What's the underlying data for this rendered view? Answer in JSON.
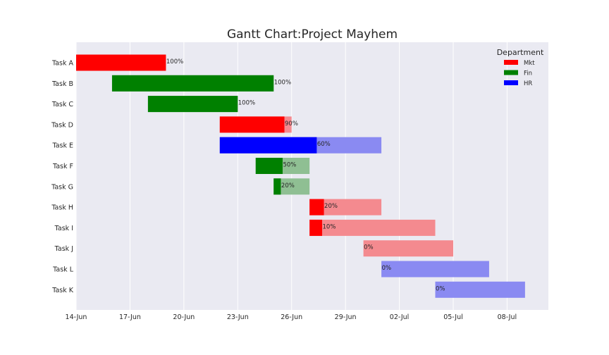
{
  "chart_data": {
    "type": "bar",
    "orientation": "horizontal-gantt",
    "title": "Gantt Chart:Project Mayhem",
    "xlabel": "",
    "ylabel": "",
    "grid": true,
    "legend_position": "top-right",
    "legend_title": "Department",
    "departments": [
      {
        "name": "Mkt",
        "color": "#ff0000",
        "light_color": "#f48a8f"
      },
      {
        "name": "Fin",
        "color": "#008000",
        "light_color": "#8fbf93"
      },
      {
        "name": "HR",
        "color": "#0000ff",
        "light_color": "#8a8af2"
      }
    ],
    "xlim_days": [
      0,
      26.3
    ],
    "x_tick_days": [
      0,
      3,
      6,
      9,
      12,
      15,
      18,
      21,
      24
    ],
    "x_tick_labels": [
      "14-Jun",
      "17-Jun",
      "20-Jun",
      "23-Jun",
      "26-Jun",
      "29-Jun",
      "02-Jul",
      "05-Jul",
      "08-Jul"
    ],
    "tasks": [
      {
        "task": "Task A",
        "department": "Mkt",
        "start": "14-Jun",
        "end": "19-Jun",
        "start_day": 0,
        "end_day": 5,
        "completion": 1.0,
        "completion_label": "100%"
      },
      {
        "task": "Task B",
        "department": "Fin",
        "start": "16-Jun",
        "end": "25-Jun",
        "start_day": 2,
        "end_day": 11,
        "completion": 1.0,
        "completion_label": "100%"
      },
      {
        "task": "Task C",
        "department": "Fin",
        "start": "18-Jun",
        "end": "23-Jun",
        "start_day": 4,
        "end_day": 9,
        "completion": 1.0,
        "completion_label": "100%"
      },
      {
        "task": "Task D",
        "department": "Mkt",
        "start": "22-Jun",
        "end": "26-Jun",
        "start_day": 8,
        "end_day": 12,
        "completion": 0.9,
        "completion_label": "90%"
      },
      {
        "task": "Task E",
        "department": "HR",
        "start": "22-Jun",
        "end": "01-Jul",
        "start_day": 8,
        "end_day": 17,
        "completion": 0.6,
        "completion_label": "60%"
      },
      {
        "task": "Task F",
        "department": "Fin",
        "start": "24-Jun",
        "end": "27-Jun",
        "start_day": 10,
        "end_day": 13,
        "completion": 0.5,
        "completion_label": "50%"
      },
      {
        "task": "Task G",
        "department": "Fin",
        "start": "25-Jun",
        "end": "27-Jun",
        "start_day": 11,
        "end_day": 13,
        "completion": 0.2,
        "completion_label": "20%"
      },
      {
        "task": "Task H",
        "department": "Mkt",
        "start": "27-Jun",
        "end": "01-Jul",
        "start_day": 13,
        "end_day": 17,
        "completion": 0.2,
        "completion_label": "20%"
      },
      {
        "task": "Task I",
        "department": "Mkt",
        "start": "27-Jun",
        "end": "04-Jul",
        "start_day": 13,
        "end_day": 20,
        "completion": 0.1,
        "completion_label": "10%"
      },
      {
        "task": "Task J",
        "department": "Mkt",
        "start": "30-Jun",
        "end": "05-Jul",
        "start_day": 16,
        "end_day": 21,
        "completion": 0.0,
        "completion_label": "0%"
      },
      {
        "task": "Task L",
        "department": "HR",
        "start": "01-Jul",
        "end": "07-Jul",
        "start_day": 17,
        "end_day": 23,
        "completion": 0.0,
        "completion_label": "0%"
      },
      {
        "task": "Task K",
        "department": "HR",
        "start": "04-Jul",
        "end": "09-Jul",
        "start_day": 20,
        "end_day": 25,
        "completion": 0.0,
        "completion_label": "0%"
      }
    ]
  }
}
